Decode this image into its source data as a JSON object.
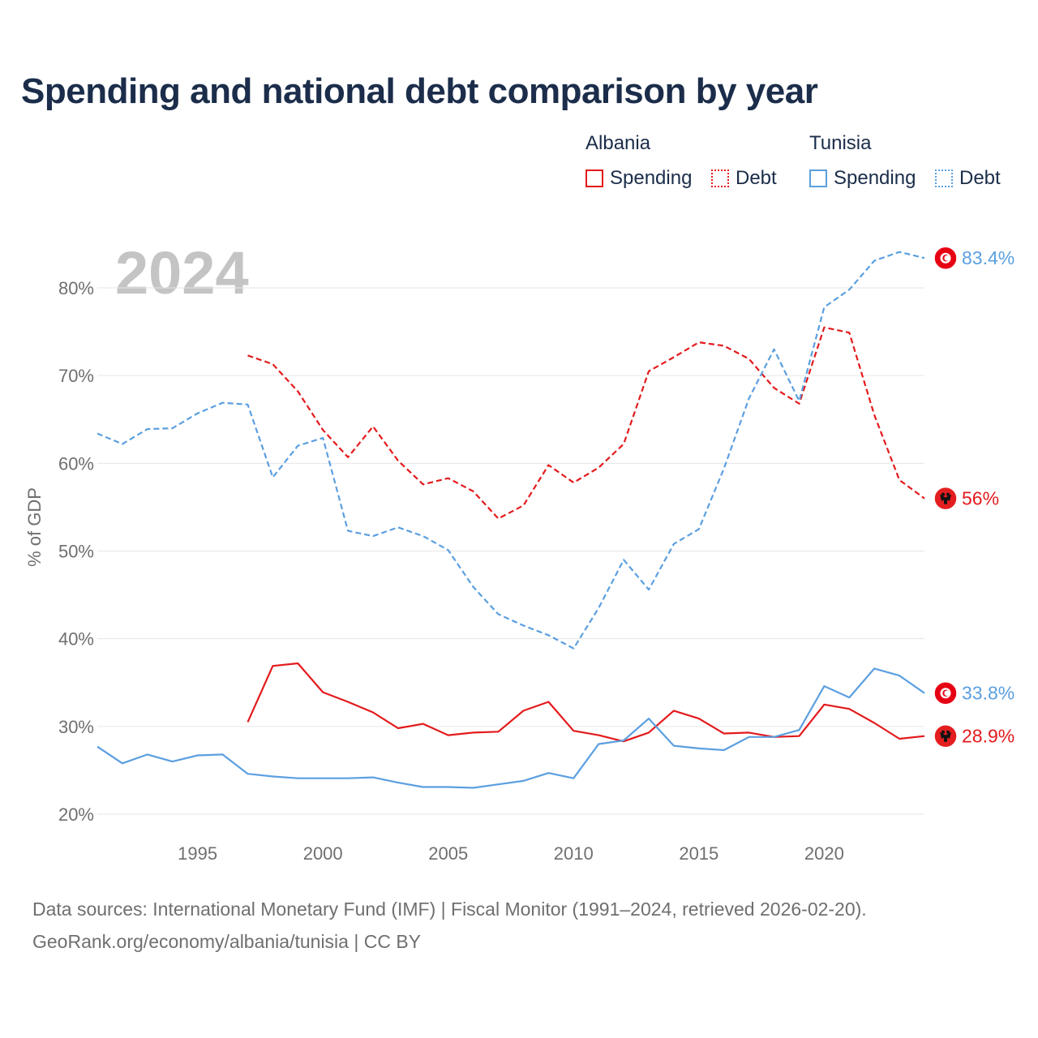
{
  "title": "Spending and national debt comparison by year",
  "legend": {
    "groups": [
      {
        "country": "Albania",
        "color": "#e31a1c",
        "items": [
          {
            "label": "Spending",
            "style": "solid"
          },
          {
            "label": "Debt",
            "style": "dotted"
          }
        ]
      },
      {
        "country": "Tunisia",
        "color": "#5b9fe0",
        "items": [
          {
            "label": "Spending",
            "style": "solid"
          },
          {
            "label": "Debt",
            "style": "dotted"
          }
        ]
      }
    ]
  },
  "year_watermark": "2024",
  "footer": {
    "line1": "Data sources: International Monetary Fund (IMF) | Fiscal Monitor (1991–2024, retrieved 2026-02-20).",
    "line2": "GeoRank.org/economy/albania/tunisia | CC BY"
  },
  "chart_data": {
    "type": "line",
    "title": "Spending and national debt comparison by year",
    "xlabel": "",
    "ylabel": "% of GDP",
    "xlim": [
      1991,
      2024
    ],
    "ylim": [
      20,
      85
    ],
    "x_ticks": [
      1995,
      2000,
      2005,
      2010,
      2015,
      2020
    ],
    "y_ticks": [
      20,
      30,
      40,
      50,
      60,
      70,
      80
    ],
    "y_tick_suffix": "%",
    "grid": "horizontal",
    "series": [
      {
        "name": "Albania Debt",
        "country": "Albania",
        "measure": "Debt",
        "color": "#e31a1c",
        "dashed": true,
        "x": [
          1997,
          1998,
          1999,
          2000,
          2001,
          2002,
          2003,
          2004,
          2005,
          2006,
          2007,
          2008,
          2009,
          2010,
          2011,
          2012,
          2013,
          2014,
          2015,
          2016,
          2017,
          2018,
          2019,
          2020,
          2021,
          2022,
          2023,
          2024
        ],
        "values": [
          72.3,
          71.3,
          68.2,
          63.8,
          60.7,
          64.2,
          60.3,
          57.6,
          58.3,
          56.8,
          53.7,
          55.2,
          59.8,
          57.8,
          59.5,
          62.2,
          70.5,
          72.1,
          73.8,
          73.4,
          71.9,
          68.6,
          66.8,
          75.5,
          74.9,
          65.5,
          58.1,
          56.0
        ],
        "end_label": "56%",
        "flag": "albania-flag-icon"
      },
      {
        "name": "Tunisia Debt",
        "country": "Tunisia",
        "measure": "Debt",
        "color": "#5b9fe0",
        "dashed": true,
        "x": [
          1991,
          1992,
          1993,
          1994,
          1995,
          1996,
          1997,
          1998,
          1999,
          2000,
          2001,
          2002,
          2003,
          2004,
          2005,
          2006,
          2007,
          2008,
          2009,
          2010,
          2011,
          2012,
          2013,
          2014,
          2015,
          2016,
          2017,
          2018,
          2019,
          2020,
          2021,
          2022,
          2023,
          2024
        ],
        "values": [
          63.4,
          62.2,
          63.9,
          64.0,
          65.7,
          66.9,
          66.7,
          58.4,
          62.0,
          62.9,
          52.3,
          51.7,
          52.7,
          51.7,
          50.1,
          45.9,
          42.8,
          41.5,
          40.4,
          38.9,
          43.5,
          49.0,
          45.6,
          50.8,
          52.5,
          59.4,
          67.4,
          73.0,
          67.1,
          77.8,
          79.8,
          83.1,
          84.1,
          83.4
        ],
        "end_label": "83.4%",
        "flag": "tunisia-flag-icon"
      },
      {
        "name": "Albania Spending",
        "country": "Albania",
        "measure": "Spending",
        "color": "#e31a1c",
        "dashed": false,
        "x": [
          1997,
          1998,
          1999,
          2000,
          2001,
          2002,
          2003,
          2004,
          2005,
          2006,
          2007,
          2008,
          2009,
          2010,
          2011,
          2012,
          2013,
          2014,
          2015,
          2016,
          2017,
          2018,
          2019,
          2020,
          2021,
          2022,
          2023,
          2024
        ],
        "values": [
          30.5,
          36.9,
          37.2,
          33.9,
          32.8,
          31.6,
          29.8,
          30.3,
          29.0,
          29.3,
          29.4,
          31.8,
          32.8,
          29.5,
          29.0,
          28.3,
          29.3,
          31.8,
          30.9,
          29.2,
          29.3,
          28.8,
          28.9,
          32.5,
          32.0,
          30.4,
          28.6,
          28.9
        ],
        "end_label": "28.9%",
        "flag": "albania-flag-icon"
      },
      {
        "name": "Tunisia Spending",
        "country": "Tunisia",
        "measure": "Spending",
        "color": "#5b9fe0",
        "dashed": false,
        "x": [
          1991,
          1992,
          1993,
          1994,
          1995,
          1996,
          1997,
          1998,
          1999,
          2000,
          2001,
          2002,
          2003,
          2004,
          2005,
          2006,
          2007,
          2008,
          2009,
          2010,
          2011,
          2012,
          2013,
          2014,
          2015,
          2016,
          2017,
          2018,
          2019,
          2020,
          2021,
          2022,
          2023,
          2024
        ],
        "values": [
          27.7,
          25.8,
          26.8,
          26.0,
          26.7,
          26.8,
          24.6,
          24.3,
          24.1,
          24.1,
          24.1,
          24.2,
          23.6,
          23.1,
          23.1,
          23.0,
          23.4,
          23.8,
          24.7,
          24.1,
          28.0,
          28.4,
          30.9,
          27.8,
          27.5,
          27.3,
          28.8,
          28.8,
          29.6,
          34.6,
          33.3,
          36.6,
          35.8,
          33.8
        ],
        "end_label": "33.8%",
        "flag": "tunisia-flag-icon"
      }
    ]
  }
}
